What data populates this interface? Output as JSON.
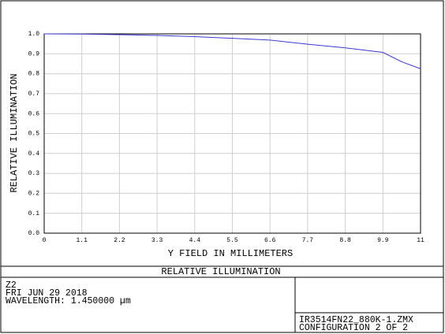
{
  "chart_data": {
    "type": "line",
    "x_label": "Y FIELD IN MILLIMETERS",
    "y_label": "RELATIVE ILLUMINATION",
    "x": [
      0,
      1.1,
      2.2,
      3.3,
      4.4,
      5.5,
      6.6,
      7.7,
      8.8,
      9.9,
      10.45,
      11
    ],
    "series": [
      {
        "color": "#3a3ad0",
        "values": [
          1.0,
          0.999,
          0.996,
          0.992,
          0.986,
          0.978,
          0.969,
          0.948,
          0.93,
          0.907,
          0.86,
          0.825
        ]
      }
    ],
    "xlim": [
      0,
      11
    ],
    "ylim": [
      0,
      1
    ],
    "xticks": [
      0,
      1.1,
      2.2,
      3.3,
      4.4,
      5.5,
      6.6,
      7.7,
      8.8,
      9.9,
      11
    ],
    "yticks": [
      {
        "value": 0,
        "label": "0.0"
      },
      0.1,
      0.2,
      0.3,
      0.4,
      0.5,
      0.6,
      0.7,
      0.8,
      0.9,
      {
        "value": 1,
        "label": "1.0"
      }
    ],
    "grid": true
  },
  "footer": {
    "title": "RELATIVE ILLUMINATION",
    "lines": [
      "Z2",
      "FRI JUN 29 2018",
      "WAVELENGTH: 1.450000 µm"
    ],
    "file": "IR3514FN22_880K-1.ZMX",
    "config": "CONFIGURATION 2 OF 2"
  }
}
